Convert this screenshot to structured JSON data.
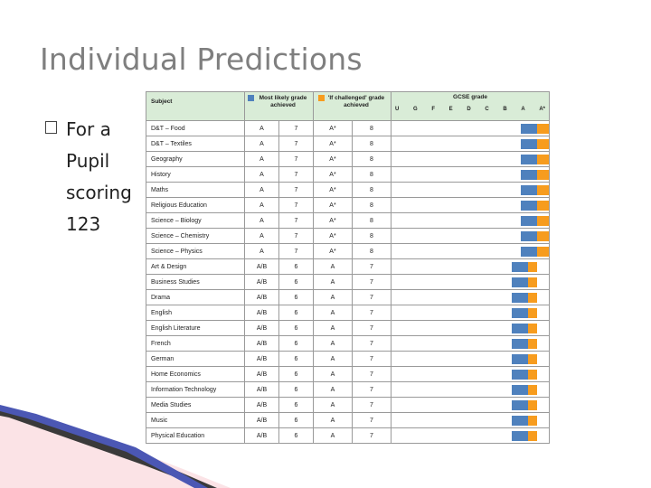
{
  "title": "Individual Predictions",
  "bullet": [
    "For a",
    "Pupil",
    "scoring",
    "123"
  ],
  "table": {
    "headers": {
      "subject": "Subject",
      "most_likely": "Most likely grade achieved",
      "if_challenged": "'If challenged' grade achieved",
      "gcse": "GCSE grade",
      "grades": [
        "U",
        "G",
        "F",
        "E",
        "D",
        "C",
        "B",
        "A",
        "A*"
      ]
    },
    "rows": [
      {
        "subject": "D&T – Food",
        "ml_grade": "A",
        "ml_num": "7",
        "ch_grade": "A*",
        "ch_num": "8"
      },
      {
        "subject": "D&T – Textiles",
        "ml_grade": "A",
        "ml_num": "7",
        "ch_grade": "A*",
        "ch_num": "8"
      },
      {
        "subject": "Geography",
        "ml_grade": "A",
        "ml_num": "7",
        "ch_grade": "A*",
        "ch_num": "8"
      },
      {
        "subject": "History",
        "ml_grade": "A",
        "ml_num": "7",
        "ch_grade": "A*",
        "ch_num": "8"
      },
      {
        "subject": "Maths",
        "ml_grade": "A",
        "ml_num": "7",
        "ch_grade": "A*",
        "ch_num": "8"
      },
      {
        "subject": "Religious Education",
        "ml_grade": "A",
        "ml_num": "7",
        "ch_grade": "A*",
        "ch_num": "8"
      },
      {
        "subject": "Science – Biology",
        "ml_grade": "A",
        "ml_num": "7",
        "ch_grade": "A*",
        "ch_num": "8"
      },
      {
        "subject": "Science – Chemistry",
        "ml_grade": "A",
        "ml_num": "7",
        "ch_grade": "A*",
        "ch_num": "8"
      },
      {
        "subject": "Science – Physics",
        "ml_grade": "A",
        "ml_num": "7",
        "ch_grade": "A*",
        "ch_num": "8"
      },
      {
        "subject": "Art & Design",
        "ml_grade": "A/B",
        "ml_num": "6",
        "ch_grade": "A",
        "ch_num": "7"
      },
      {
        "subject": "Business Studies",
        "ml_grade": "A/B",
        "ml_num": "6",
        "ch_grade": "A",
        "ch_num": "7"
      },
      {
        "subject": "Drama",
        "ml_grade": "A/B",
        "ml_num": "6",
        "ch_grade": "A",
        "ch_num": "7"
      },
      {
        "subject": "English",
        "ml_grade": "A/B",
        "ml_num": "6",
        "ch_grade": "A",
        "ch_num": "7"
      },
      {
        "subject": "English Literature",
        "ml_grade": "A/B",
        "ml_num": "6",
        "ch_grade": "A",
        "ch_num": "7"
      },
      {
        "subject": "French",
        "ml_grade": "A/B",
        "ml_num": "6",
        "ch_grade": "A",
        "ch_num": "7"
      },
      {
        "subject": "German",
        "ml_grade": "A/B",
        "ml_num": "6",
        "ch_grade": "A",
        "ch_num": "7"
      },
      {
        "subject": "Home Economics",
        "ml_grade": "A/B",
        "ml_num": "6",
        "ch_grade": "A",
        "ch_num": "7"
      },
      {
        "subject": "Information Technology",
        "ml_grade": "A/B",
        "ml_num": "6",
        "ch_grade": "A",
        "ch_num": "7"
      },
      {
        "subject": "Media Studies",
        "ml_grade": "A/B",
        "ml_num": "6",
        "ch_grade": "A",
        "ch_num": "7"
      },
      {
        "subject": "Music",
        "ml_grade": "A/B",
        "ml_num": "6",
        "ch_grade": "A",
        "ch_num": "7"
      },
      {
        "subject": "Physical Education",
        "ml_grade": "A/B",
        "ml_num": "6",
        "ch_grade": "A",
        "ch_num": "7"
      }
    ]
  },
  "colors": {
    "most_likely": "#4f81bd",
    "if_challenged": "#f79c1e",
    "header_bg": "#d9ecd7",
    "title": "#7f7f7f"
  }
}
